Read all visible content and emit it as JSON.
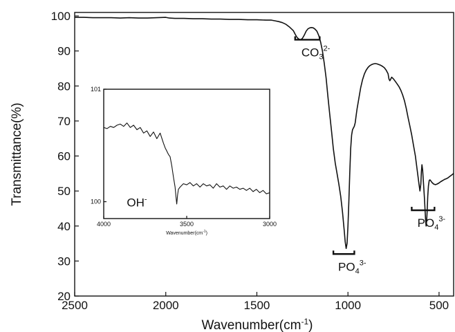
{
  "chart_data": [
    {
      "type": "line",
      "title": "",
      "xlabel": "Wavenumber(cm",
      "xlabel_sup": "-1",
      "xlabel_end": ")",
      "ylabel": "Transmittance(%)",
      "xlim": [
        2500,
        420
      ],
      "ylim": [
        20,
        101
      ],
      "x_reversed": true,
      "x_ticks": [
        2500,
        2000,
        1500,
        1000,
        500
      ],
      "y_ticks": [
        20,
        30,
        40,
        50,
        60,
        70,
        80,
        90,
        100
      ],
      "grid": false,
      "series": [
        {
          "x": [
            2500,
            2450,
            2400,
            2350,
            2300,
            2250,
            2200,
            2150,
            2100,
            2050,
            2000,
            1980,
            1950,
            1900,
            1850,
            1800,
            1750,
            1700,
            1650,
            1600,
            1550,
            1500,
            1450,
            1420,
            1400,
            1380,
            1360,
            1340,
            1320,
            1300,
            1290,
            1280,
            1270,
            1260,
            1250,
            1240,
            1230,
            1220,
            1210,
            1200,
            1190,
            1180,
            1170,
            1160,
            1150,
            1140,
            1130,
            1120,
            1110,
            1100,
            1090,
            1080,
            1070,
            1060,
            1050,
            1040,
            1030,
            1020,
            1015,
            1010,
            1005,
            1000,
            995,
            990,
            985,
            980,
            975,
            970,
            965,
            960,
            955,
            950,
            940,
            930,
            920,
            910,
            900,
            890,
            880,
            870,
            860,
            850,
            840,
            830,
            820,
            810,
            800,
            790,
            780,
            775,
            770,
            765,
            760,
            750,
            740,
            730,
            720,
            710,
            700,
            690,
            680,
            670,
            660,
            650,
            640,
            630,
            620,
            610,
            605,
            600,
            597,
            594,
            590,
            585,
            580,
            577,
            574,
            571,
            568,
            565,
            562,
            558,
            554,
            550,
            545,
            540,
            530,
            520,
            510,
            500,
            490,
            480,
            470,
            460,
            450,
            440,
            430,
            420
          ],
          "y": [
            99.6,
            99.6,
            99.5,
            99.5,
            99.5,
            99.4,
            99.5,
            99.4,
            99.4,
            99.5,
            99.6,
            99.4,
            99.3,
            99.3,
            99.2,
            99.2,
            99.1,
            99.1,
            99.0,
            99.0,
            98.9,
            98.9,
            98.8,
            98.8,
            98.6,
            98.4,
            98.1,
            97.6,
            96.8,
            95.8,
            94.8,
            93.9,
            93.4,
            93.2,
            93.6,
            94.5,
            95.6,
            96.3,
            96.6,
            96.7,
            96.6,
            96.2,
            95.6,
            94.4,
            92.5,
            90.0,
            86.5,
            82.3,
            77.0,
            72.0,
            67.0,
            62.0,
            58.0,
            55.0,
            52.0,
            48.5,
            44.0,
            38.5,
            35.5,
            33.6,
            35.0,
            40.0,
            47.0,
            55.0,
            62.0,
            66.0,
            67.5,
            68.0,
            68.5,
            69.5,
            71.5,
            73.5,
            76.5,
            79.5,
            81.8,
            83.4,
            84.5,
            85.3,
            85.8,
            86.1,
            86.3,
            86.4,
            86.3,
            86.1,
            85.9,
            85.6,
            85.2,
            84.5,
            83.5,
            82.0,
            81.5,
            82.0,
            82.5,
            82.0,
            81.3,
            80.6,
            79.8,
            78.8,
            77.5,
            75.8,
            73.6,
            71.0,
            68.5,
            66.0,
            63.0,
            60.0,
            56.0,
            52.0,
            50.0,
            52.0,
            55.5,
            57.5,
            56.0,
            52.0,
            48.0,
            45.0,
            42.0,
            40.0,
            41.5,
            44.5,
            48.5,
            51.5,
            53.0,
            53.2,
            52.9,
            52.5,
            52.0,
            51.8,
            52.0,
            52.3,
            52.7,
            53.0,
            53.3,
            53.5,
            53.8,
            54.2,
            54.6,
            55.0
          ]
        }
      ],
      "annotations": [
        {
          "label": "CO",
          "sub": "3",
          "sup": "2-",
          "x_from": 1290,
          "x_to": 1155,
          "y": 93.2
        },
        {
          "label": "PO",
          "sub": "4",
          "sup": "3-",
          "x_from": 1080,
          "x_to": 965,
          "y": 32.0
        },
        {
          "label": "PO",
          "sub": "4",
          "sup": "3-",
          "x_from": 650,
          "x_to": 525,
          "y": 44.5
        }
      ]
    },
    {
      "type": "line",
      "title": "",
      "xlabel": "Wavenumber(cm",
      "xlabel_sup": "-1",
      "xlabel_end": ")",
      "ylabel": "",
      "xlim": [
        4000,
        3000
      ],
      "ylim": [
        99.85,
        101
      ],
      "x_reversed": true,
      "x_ticks": [
        4000,
        3500,
        3000
      ],
      "y_ticks": [
        100,
        101
      ],
      "grid": false,
      "series": [
        {
          "x": [
            4000,
            3980,
            3960,
            3940,
            3920,
            3900,
            3880,
            3860,
            3840,
            3820,
            3800,
            3780,
            3760,
            3740,
            3720,
            3700,
            3680,
            3660,
            3640,
            3630,
            3620,
            3610,
            3600,
            3590,
            3580,
            3570,
            3565,
            3560,
            3555,
            3550,
            3540,
            3520,
            3500,
            3480,
            3460,
            3440,
            3420,
            3400,
            3380,
            3360,
            3340,
            3320,
            3300,
            3280,
            3260,
            3240,
            3220,
            3200,
            3180,
            3160,
            3140,
            3120,
            3100,
            3080,
            3060,
            3040,
            3020,
            3000
          ],
          "y": [
            100.66,
            100.65,
            100.67,
            100.66,
            100.68,
            100.69,
            100.67,
            100.7,
            100.66,
            100.68,
            100.64,
            100.66,
            100.61,
            100.63,
            100.58,
            100.62,
            100.56,
            100.61,
            100.52,
            100.48,
            100.45,
            100.42,
            100.4,
            100.32,
            100.22,
            100.13,
            100.05,
            99.98,
            100.06,
            100.11,
            100.13,
            100.16,
            100.15,
            100.17,
            100.14,
            100.16,
            100.13,
            100.16,
            100.14,
            100.15,
            100.12,
            100.16,
            100.13,
            100.14,
            100.11,
            100.14,
            100.12,
            100.13,
            100.11,
            100.12,
            100.1,
            100.12,
            100.09,
            100.11,
            100.08,
            100.1,
            100.07,
            100.08
          ]
        }
      ],
      "annotations": [
        {
          "label": "OH",
          "sup": "-",
          "x": 3800,
          "y": 100.0
        }
      ]
    }
  ]
}
